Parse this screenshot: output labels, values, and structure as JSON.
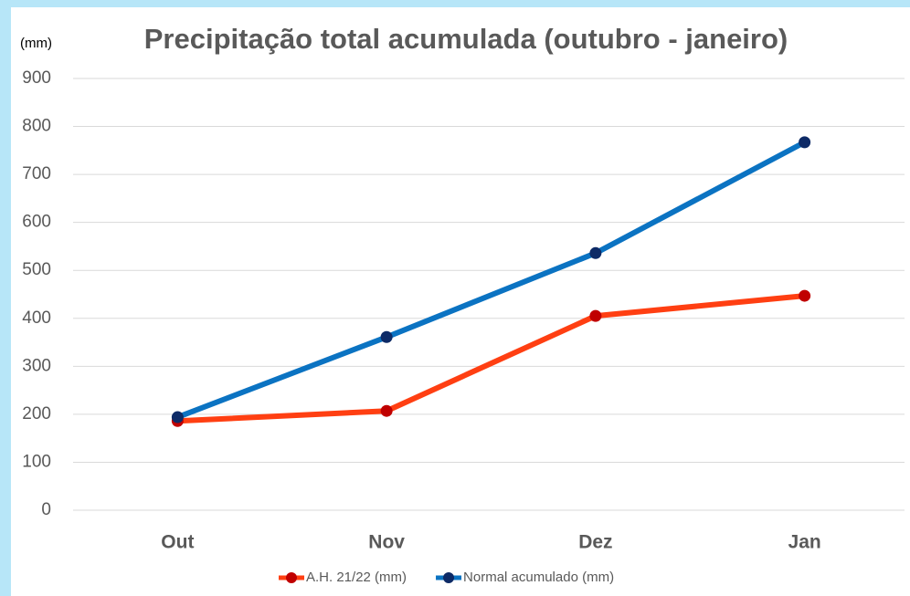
{
  "chart_data": {
    "type": "line",
    "title": "Precipitação total acumulada (outubro - janeiro)",
    "y_axis_label": "(mm)",
    "categories": [
      "Out",
      "Nov",
      "Dez",
      "Jan"
    ],
    "series": [
      {
        "name": "A.H. 21/22 (mm)",
        "color": "#ff3f12",
        "marker_color": "#c00000",
        "values": [
          186,
          207,
          405,
          447
        ]
      },
      {
        "name": "Normal acumulado (mm)",
        "color": "#0b73c2",
        "marker_color": "#0d2a66",
        "values": [
          194,
          361,
          536,
          767
        ]
      }
    ],
    "ylim": [
      0,
      900
    ],
    "yticks": [
      0,
      100,
      200,
      300,
      400,
      500,
      600,
      700,
      800,
      900
    ],
    "grid": true,
    "legend": "bottom"
  }
}
